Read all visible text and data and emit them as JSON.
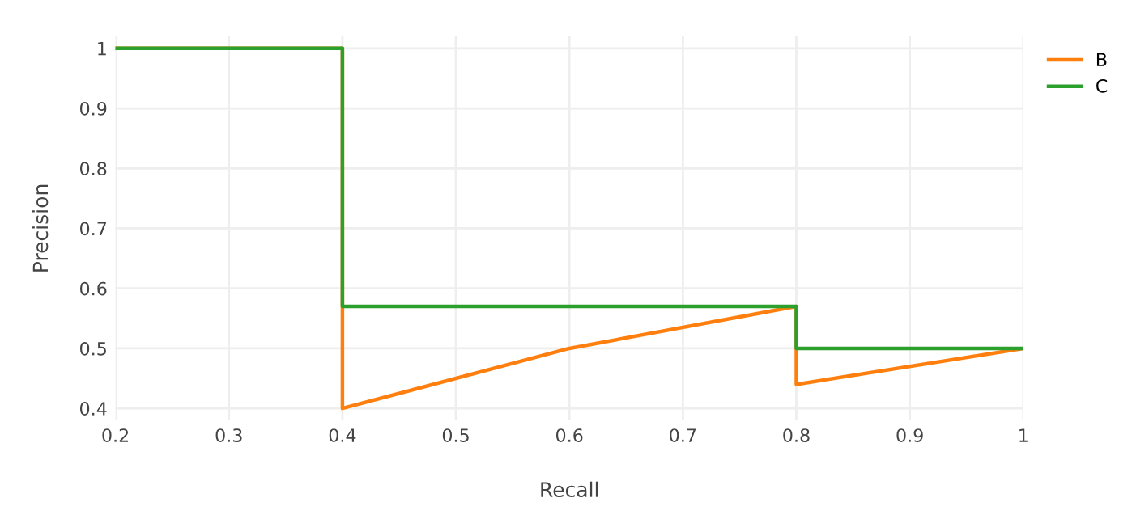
{
  "chart_data": {
    "type": "line",
    "xlabel": "Recall",
    "ylabel": "Precision",
    "xlim": [
      0.2,
      1
    ],
    "ylim": [
      0.38,
      1.02
    ],
    "xticks": [
      0.2,
      0.3,
      0.4,
      0.5,
      0.6,
      0.7,
      0.8,
      0.9,
      1
    ],
    "yticks": [
      0.4,
      0.5,
      0.6,
      0.7,
      0.8,
      0.9,
      1
    ],
    "grid": true,
    "legend": "top right",
    "marker": "none",
    "line_style": "solid",
    "series": [
      {
        "name": "B",
        "color": "#ff7f0e",
        "x": [
          0.2,
          0.4,
          0.4,
          0.6,
          0.8,
          0.8,
          1
        ],
        "values": [
          1,
          1,
          0.4,
          0.5,
          0.57,
          0.44,
          0.5
        ]
      },
      {
        "name": "C",
        "color": "#2ca02c",
        "x": [
          0.2,
          0.4,
          0.4,
          0.8,
          0.8,
          1
        ],
        "values": [
          1,
          1,
          0.57,
          0.57,
          0.5,
          0.5
        ]
      }
    ]
  }
}
